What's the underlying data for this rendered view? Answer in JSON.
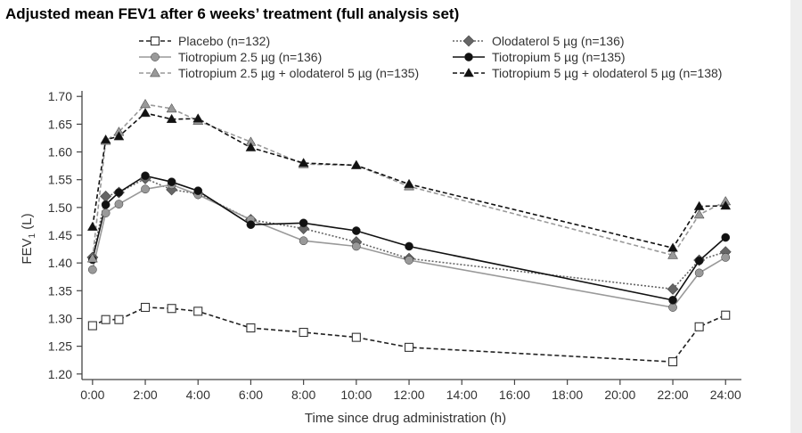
{
  "title": "Adjusted mean FEV1 after 6 weeks’ treatment (full analysis set)",
  "chart_data": {
    "type": "line",
    "xlabel": "Time since drug administration (h)",
    "ylabel_main": "FEV",
    "ylabel_sub": "1",
    "ylabel_unit": " (L)",
    "xlim": [
      -0.4,
      24.6
    ],
    "ylim": [
      1.19,
      1.71
    ],
    "yticks": [
      1.2,
      1.25,
      1.3,
      1.35,
      1.4,
      1.45,
      1.5,
      1.55,
      1.6,
      1.65,
      1.7
    ],
    "ytick_labels": [
      "1.20",
      "1.25",
      "1.30",
      "1.35",
      "1.40",
      "1.45",
      "1.50",
      "1.55",
      "1.60",
      "1.65",
      "1.70"
    ],
    "xticks": [
      0,
      2,
      4,
      6,
      8,
      10,
      12,
      14,
      16,
      18,
      20,
      22,
      24
    ],
    "xtick_labels": [
      "0:00",
      "2:00",
      "4:00",
      "6:00",
      "8:00",
      "10:00",
      "12:00",
      "14:00",
      "16:00",
      "18:00",
      "20:00",
      "22:00",
      "24:00"
    ],
    "grid": false,
    "legend_position": "top",
    "series": [
      {
        "name": "Placebo (n=132)",
        "color": "#222222",
        "dash": "dashed",
        "marker": "square-open",
        "x": [
          0,
          0.5,
          1,
          2,
          3,
          4,
          6,
          8,
          10,
          12,
          22,
          23,
          24
        ],
        "y": [
          1.287,
          1.298,
          1.298,
          1.32,
          1.318,
          1.313,
          1.283,
          1.275,
          1.266,
          1.248,
          1.222,
          1.285,
          1.306
        ]
      },
      {
        "name": "Olodaterol 5 µg (n=136)",
        "color": "#666666",
        "dash": "dotted",
        "marker": "diamond",
        "x": [
          0,
          0.5,
          1,
          2,
          3,
          4,
          6,
          8,
          10,
          12,
          22,
          23,
          24
        ],
        "y": [
          1.41,
          1.52,
          1.527,
          1.552,
          1.532,
          1.525,
          1.478,
          1.462,
          1.438,
          1.408,
          1.353,
          1.405,
          1.42
        ]
      },
      {
        "name": "Tiotropium 2.5 µg (n=136)",
        "color": "#999999",
        "dash": "solid",
        "marker": "circle",
        "x": [
          0,
          0.5,
          1,
          2,
          3,
          4,
          6,
          8,
          10,
          12,
          22,
          23,
          24
        ],
        "y": [
          1.388,
          1.49,
          1.506,
          1.533,
          1.541,
          1.523,
          1.478,
          1.44,
          1.43,
          1.405,
          1.32,
          1.382,
          1.41
        ]
      },
      {
        "name": "Tiotropium 5 µg (n=135)",
        "color": "#111111",
        "dash": "solid",
        "marker": "circle",
        "x": [
          0,
          0.5,
          1,
          2,
          3,
          4,
          6,
          8,
          10,
          12,
          22,
          23,
          24
        ],
        "y": [
          1.406,
          1.505,
          1.527,
          1.557,
          1.546,
          1.53,
          1.469,
          1.472,
          1.458,
          1.43,
          1.333,
          1.404,
          1.446
        ]
      },
      {
        "name": "Tiotropium 2.5 µg + olodaterol 5 µg (n=135)",
        "color": "#999999",
        "dash": "dashed",
        "marker": "triangle",
        "x": [
          0,
          0.5,
          1,
          2,
          3,
          4,
          6,
          8,
          10,
          12,
          22,
          23,
          24
        ],
        "y": [
          1.408,
          1.62,
          1.636,
          1.686,
          1.678,
          1.656,
          1.618,
          1.578,
          1.576,
          1.538,
          1.414,
          1.487,
          1.511
        ]
      },
      {
        "name": "Tiotropium 5 µg + olodaterol 5 µg (n=138)",
        "color": "#111111",
        "dash": "dashed",
        "marker": "triangle",
        "x": [
          0,
          0.5,
          1,
          2,
          3,
          4,
          6,
          8,
          10,
          12,
          22,
          23,
          24
        ],
        "y": [
          1.465,
          1.622,
          1.628,
          1.67,
          1.659,
          1.66,
          1.608,
          1.58,
          1.576,
          1.542,
          1.427,
          1.502,
          1.503
        ]
      }
    ]
  }
}
